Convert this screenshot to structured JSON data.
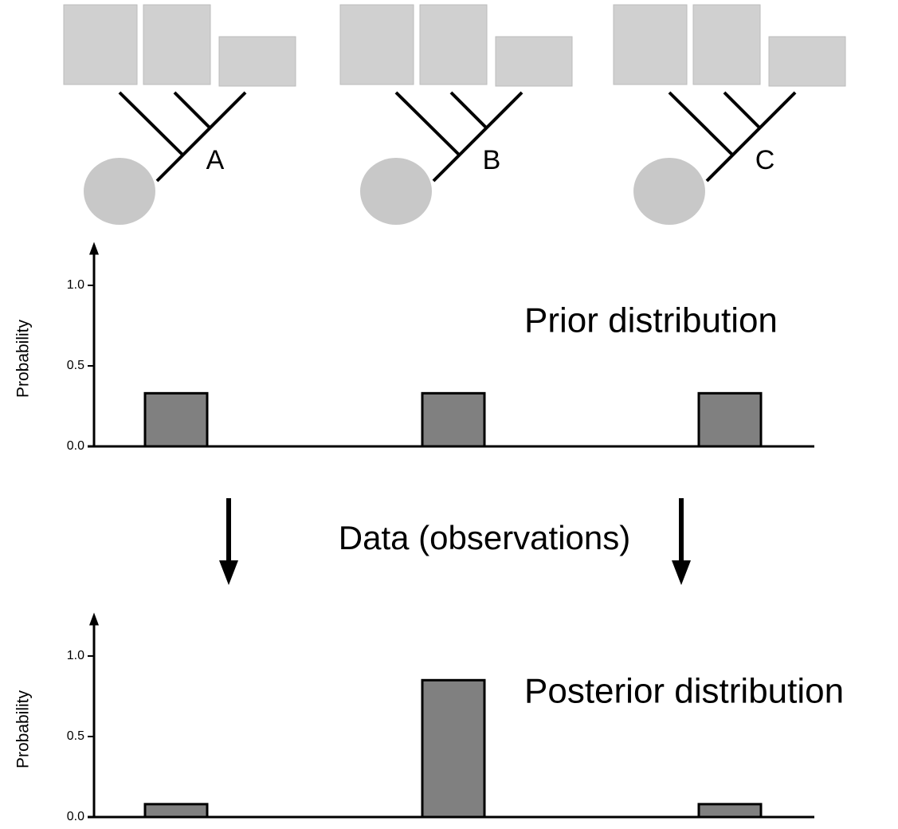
{
  "trees": [
    {
      "label": "A"
    },
    {
      "label": "B"
    },
    {
      "label": "C"
    }
  ],
  "annotation": "Data (observations)",
  "chart_data": [
    {
      "type": "bar",
      "title": "Prior distribution",
      "y_label": "Probability",
      "categories": [
        null,
        null,
        null
      ],
      "values": [
        0.33,
        0.33,
        0.33
      ],
      "color": "#808080",
      "ylim": [
        0,
        1.25
      ],
      "yticks": [
        {
          "value": 0,
          "label": "0.0"
        },
        {
          "value": 0.5,
          "label": "0.5"
        },
        {
          "value": 1,
          "label": "1.0"
        }
      ]
    },
    {
      "type": "bar",
      "title": "Posterior distribution",
      "y_label": "Probability",
      "categories": [
        null,
        null,
        null
      ],
      "values": [
        0.08,
        0.85,
        0.08
      ],
      "color": "#808080",
      "ylim": [
        0,
        1.25
      ],
      "yticks": [
        {
          "value": 0,
          "label": "0.0"
        },
        {
          "value": 0.5,
          "label": "0.5"
        },
        {
          "value": 1,
          "label": "1.0"
        }
      ]
    }
  ]
}
